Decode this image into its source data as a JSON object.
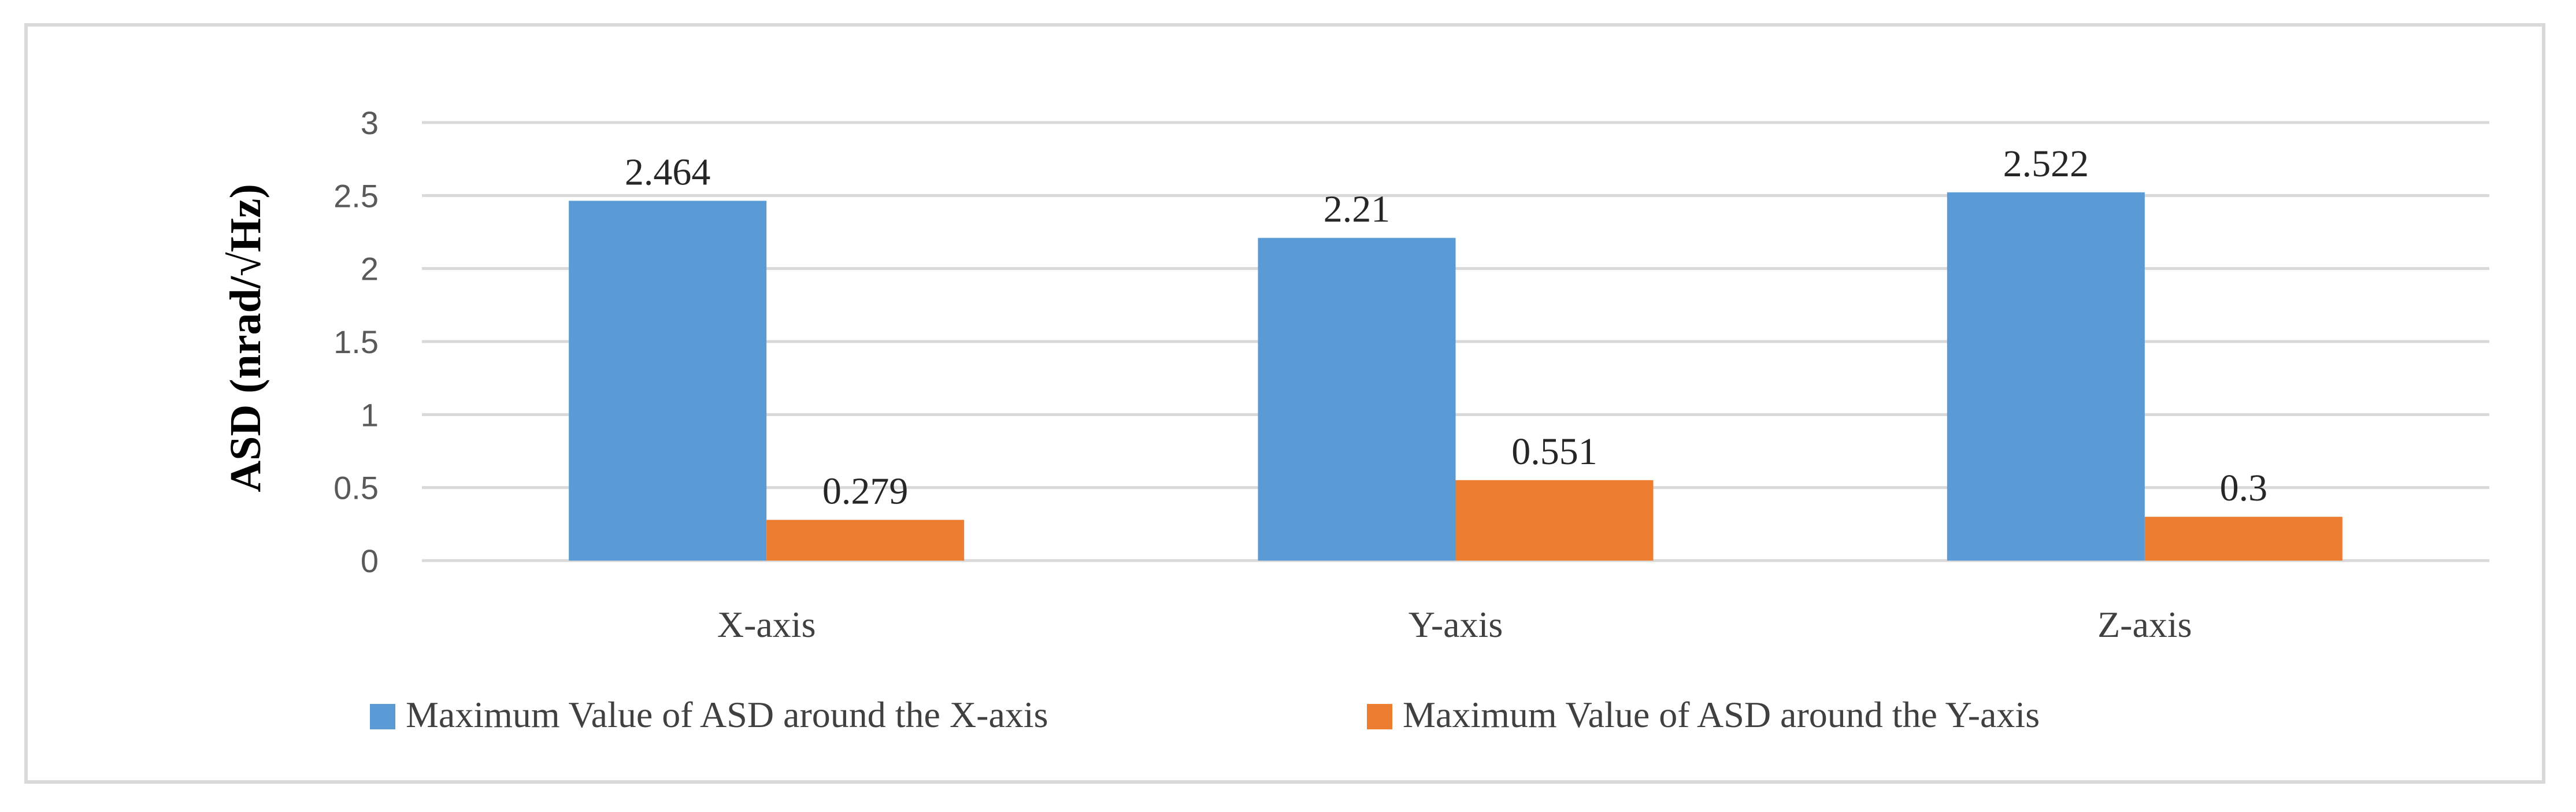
{
  "chart_data": {
    "type": "bar",
    "categories": [
      "X-axis",
      "Y-axis",
      "Z-axis"
    ],
    "series": [
      {
        "name": "Maximum Value of ASD around the X-axis",
        "values": [
          2.464,
          2.21,
          2.522
        ],
        "color": "#5b9bd5"
      },
      {
        "name": "Maximum Value of ASD around the Y-axis",
        "values": [
          0.279,
          0.551,
          0.3
        ],
        "color": "#ed7d31"
      }
    ],
    "data_labels": [
      [
        "2.464",
        "2.21",
        "2.522"
      ],
      [
        "0.279",
        "0.551",
        "0.3"
      ]
    ],
    "y_ticks": [
      "0",
      "0.5",
      "1",
      "1.5",
      "2",
      "2.5",
      "3"
    ],
    "ylim": [
      0,
      3
    ],
    "ylabel": "ASD (nrad/√Hz)",
    "xlabel": "",
    "title": "",
    "grid": true,
    "legend_position": "bottom",
    "gridline_color": "#d9d9d9"
  }
}
